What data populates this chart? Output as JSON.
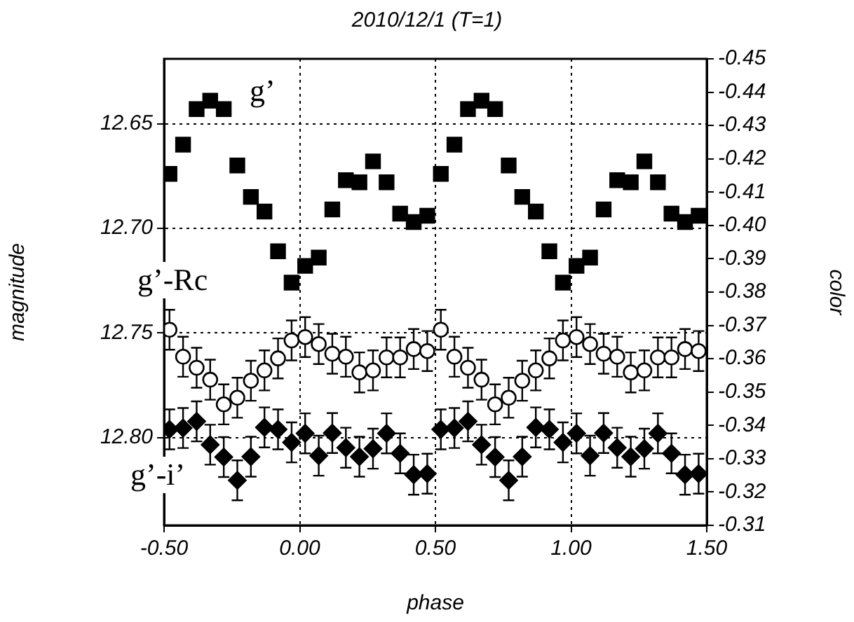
{
  "chart_data": {
    "type": "scatter",
    "title": "2010/12/1 (T=1)",
    "xlabel": "phase",
    "ylabel": "magnitude",
    "y2label": "color",
    "x": [
      -0.48,
      -0.43,
      -0.38,
      -0.33,
      -0.28,
      -0.23,
      -0.18,
      -0.13,
      -0.08,
      -0.03,
      0.02,
      0.07,
      0.12,
      0.17,
      0.22,
      0.27,
      0.32,
      0.37,
      0.42,
      0.47,
      0.52,
      0.57,
      0.62,
      0.67,
      0.72,
      0.77,
      0.82,
      0.87,
      0.92,
      0.97,
      1.02,
      1.07,
      1.12,
      1.17,
      1.22,
      1.27,
      1.32,
      1.37,
      1.42,
      1.47
    ],
    "series": [
      {
        "name": "g’",
        "type": "scatter",
        "marker": "square",
        "color": "#000000",
        "values": [
          12.674,
          12.66,
          12.643,
          12.639,
          12.643,
          12.67,
          12.685,
          12.692,
          12.711,
          12.726,
          12.718,
          12.714,
          12.691,
          12.677,
          12.678,
          12.668,
          12.678,
          12.693,
          12.697,
          12.694,
          12.674,
          12.66,
          12.643,
          12.639,
          12.643,
          12.67,
          12.685,
          12.692,
          12.711,
          12.726,
          12.718,
          12.714,
          12.691,
          12.677,
          12.678,
          12.668,
          12.678,
          12.693,
          12.697,
          12.694
        ]
      },
      {
        "name": "g’-Rc",
        "type": "scatter",
        "marker": "circle",
        "axis": "y2",
        "color": "#000000",
        "values": [
          -0.3687,
          -0.3606,
          -0.3573,
          -0.3537,
          -0.3463,
          -0.3483,
          -0.3534,
          -0.3565,
          -0.3601,
          -0.3655,
          -0.3665,
          -0.3644,
          -0.3615,
          -0.3606,
          -0.3559,
          -0.3565,
          -0.3604,
          -0.3604,
          -0.3629,
          -0.3623,
          -0.3687,
          -0.3606,
          -0.3573,
          -0.3537,
          -0.3463,
          -0.3483,
          -0.3534,
          -0.3565,
          -0.3601,
          -0.3655,
          -0.3665,
          -0.3644,
          -0.3615,
          -0.3606,
          -0.3559,
          -0.3565,
          -0.3604,
          -0.3604,
          -0.3629,
          -0.3623
        ],
        "errors": [
          0.006,
          0.006,
          0.006,
          0.006,
          0.006,
          0.006,
          0.006,
          0.006,
          0.006,
          0.006,
          0.006,
          0.006,
          0.006,
          0.006,
          0.006,
          0.006,
          0.006,
          0.006,
          0.006,
          0.006,
          0.006,
          0.006,
          0.006,
          0.006,
          0.006,
          0.006,
          0.006,
          0.006,
          0.006,
          0.006,
          0.006,
          0.006,
          0.006,
          0.006,
          0.006,
          0.006,
          0.006,
          0.006,
          0.006,
          0.006
        ]
      },
      {
        "name": "g’-i’",
        "type": "scatter",
        "marker": "diamond",
        "axis": "y2",
        "color": "#000000",
        "values": [
          -0.3388,
          -0.3392,
          -0.3412,
          -0.3342,
          -0.3305,
          -0.3235,
          -0.3306,
          -0.3394,
          -0.3388,
          -0.3349,
          -0.3376,
          -0.3309,
          -0.3377,
          -0.3333,
          -0.3306,
          -0.333,
          -0.3376,
          -0.3316,
          -0.3252,
          -0.3255,
          -0.3388,
          -0.3392,
          -0.3412,
          -0.3342,
          -0.3305,
          -0.3235,
          -0.3306,
          -0.3394,
          -0.3388,
          -0.3349,
          -0.3376,
          -0.3309,
          -0.3377,
          -0.3333,
          -0.3306,
          -0.333,
          -0.3376,
          -0.3316,
          -0.3252,
          -0.3255
        ],
        "errors": [
          0.006,
          0.006,
          0.006,
          0.006,
          0.006,
          0.006,
          0.006,
          0.006,
          0.006,
          0.006,
          0.006,
          0.006,
          0.006,
          0.006,
          0.006,
          0.006,
          0.006,
          0.006,
          0.006,
          0.006,
          0.006,
          0.006,
          0.006,
          0.006,
          0.006,
          0.006,
          0.006,
          0.006,
          0.006,
          0.006,
          0.006,
          0.006,
          0.006,
          0.006,
          0.006,
          0.006,
          0.006,
          0.006,
          0.006,
          0.006
        ]
      }
    ],
    "xlim": [
      -0.5,
      1.5
    ],
    "xticks": [
      {
        "value": -0.5,
        "label": "-0.50"
      },
      {
        "value": 0,
        "label": "0.00"
      },
      {
        "value": 0.5,
        "label": "0.50"
      },
      {
        "value": 1,
        "label": "1.00"
      },
      {
        "value": 1.5,
        "label": "1.50"
      }
    ],
    "ylim": [
      12.842,
      12.619
    ],
    "yticks": [
      12.65,
      {
        "value": 12.7,
        "label": "12.70"
      },
      12.75,
      {
        "value": 12.8,
        "label": "12.80"
      }
    ],
    "y2lim": [
      -0.31,
      -0.45
    ],
    "y2ticks": [
      -0.45,
      -0.44,
      -0.43,
      -0.42,
      -0.41,
      {
        "value": -0.4,
        "label": "-0.40"
      },
      -0.39,
      -0.38,
      -0.37,
      -0.36,
      -0.35,
      -0.34,
      -0.33,
      -0.32,
      -0.31
    ],
    "grid": true,
    "legend": false
  }
}
